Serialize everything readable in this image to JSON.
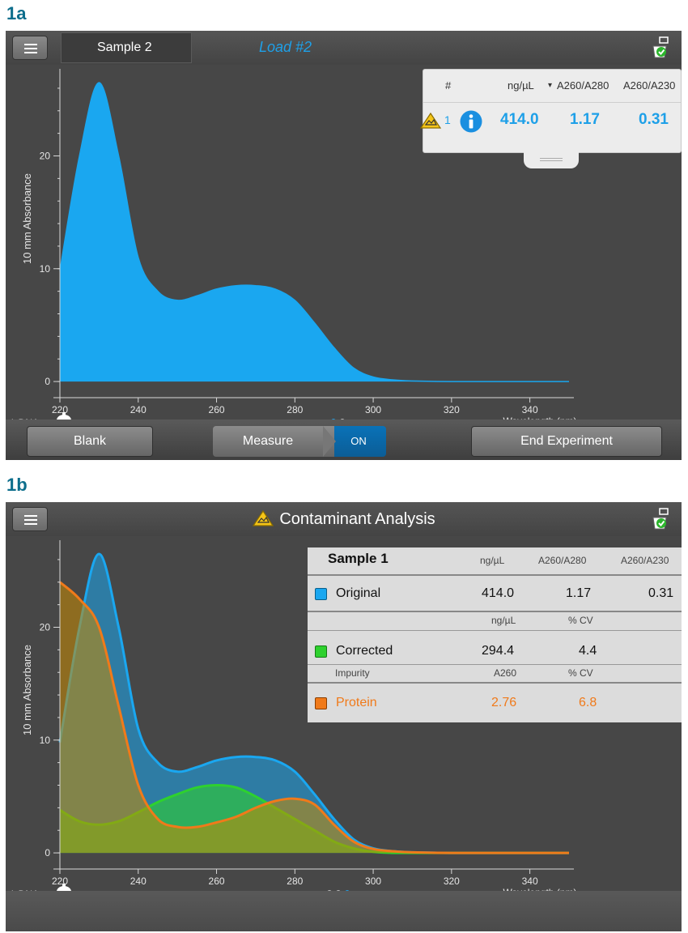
{
  "figure_a": {
    "label": "1a",
    "sample_field": "Sample 2",
    "load_label": "Load #2",
    "results": {
      "headers": {
        "num": "#",
        "ngul": "ng/µL",
        "sort_indicator": "▾",
        "a260_280": "A260/A280",
        "a260_230": "A260/A230"
      },
      "row": {
        "num": "1",
        "ngul": "414.0",
        "a260_280": "1.17",
        "a260_230": "0.31"
      }
    },
    "chart": {
      "ylabel": "10 mm Absorbance",
      "xlabel": "Wavelength (nm)",
      "y_ticks": [
        "0",
        "10",
        "20"
      ],
      "x_ticks": [
        "220",
        "240",
        "260",
        "280",
        "300",
        "320",
        "340"
      ],
      "sample_type": "dsDNA"
    },
    "buttons": {
      "blank": "Blank",
      "measure": "Measure",
      "on": "ON",
      "end": "End Experiment"
    }
  },
  "figure_b": {
    "label": "1b",
    "title": "Contaminant Analysis",
    "chart": {
      "ylabel": "10 mm Absorbance",
      "xlabel": "Wavelength (nm)",
      "y_ticks": [
        "0",
        "10",
        "20"
      ],
      "x_ticks": [
        "220",
        "240",
        "260",
        "280",
        "300",
        "320",
        "340"
      ],
      "sample_type": "dsDNA"
    },
    "table": {
      "sample": "Sample 1",
      "h1": {
        "ngul": "ng/µL",
        "a260_280": "A260/A280",
        "a260_230": "A260/A230"
      },
      "original": {
        "label": "Original",
        "ngul": "414.0",
        "a260_280": "1.17",
        "a260_230": "0.31"
      },
      "h2": {
        "ngul": "ng/µL",
        "cv": "% CV"
      },
      "corrected": {
        "label": "Corrected",
        "ngul": "294.4",
        "cv": "4.4"
      },
      "h3": {
        "impurity": "Impurity",
        "a260": "A260",
        "cv": "% CV"
      },
      "protein": {
        "label": "Protein",
        "a260": "2.76",
        "cv": "6.8"
      }
    }
  },
  "colors": {
    "original": "#1aa7f0",
    "corrected": "#2ed12e",
    "protein": "#f07a1a",
    "accent": "#1ea0e8",
    "warning": "#f5c518"
  },
  "chart_data": [
    {
      "type": "area",
      "title": "",
      "xlabel": "Wavelength (nm)",
      "ylabel": "10 mm Absorbance",
      "xlim": [
        220,
        350
      ],
      "ylim": [
        -1,
        27
      ],
      "series": [
        {
          "name": "Sample 2",
          "x": [
            220,
            225,
            230,
            235,
            240,
            245,
            250,
            255,
            260,
            265,
            270,
            275,
            280,
            285,
            290,
            295,
            300,
            305,
            310,
            320,
            330,
            340,
            350
          ],
          "values": [
            9.8,
            20,
            26.5,
            20,
            11,
            8,
            7.2,
            7.6,
            8.2,
            8.5,
            8.5,
            8.2,
            7.2,
            5.2,
            3,
            1.2,
            0.4,
            0.15,
            0.05,
            0,
            0,
            0,
            0
          ]
        }
      ]
    },
    {
      "type": "area",
      "title": "Contaminant Analysis",
      "xlabel": "Wavelength (nm)",
      "ylabel": "10 mm Absorbance",
      "xlim": [
        220,
        350
      ],
      "ylim": [
        -1,
        27
      ],
      "series": [
        {
          "name": "Original",
          "x": [
            220,
            225,
            230,
            235,
            240,
            245,
            250,
            255,
            260,
            265,
            270,
            275,
            280,
            285,
            290,
            295,
            300,
            305,
            310,
            320,
            330,
            340,
            350
          ],
          "values": [
            9.8,
            20,
            26.5,
            20,
            11,
            8,
            7.2,
            7.6,
            8.2,
            8.5,
            8.5,
            8.2,
            7.2,
            5.2,
            3,
            1.2,
            0.4,
            0.15,
            0.05,
            0,
            0,
            0,
            0
          ]
        },
        {
          "name": "Corrected",
          "x": [
            220,
            225,
            230,
            235,
            240,
            245,
            250,
            255,
            260,
            265,
            270,
            275,
            280,
            285,
            290,
            295,
            300,
            305,
            310,
            320,
            330,
            340,
            350
          ],
          "values": [
            3.8,
            2.8,
            2.5,
            2.8,
            3.6,
            4.5,
            5.2,
            5.8,
            6,
            5.8,
            5,
            4,
            3,
            2,
            1,
            0.4,
            0.1,
            0,
            0,
            0,
            0,
            0,
            0
          ]
        },
        {
          "name": "Protein",
          "x": [
            220,
            225,
            230,
            235,
            240,
            245,
            250,
            255,
            260,
            265,
            270,
            275,
            280,
            285,
            290,
            295,
            300,
            305,
            310,
            320,
            330,
            340,
            350
          ],
          "values": [
            24,
            22.5,
            20,
            13,
            6,
            3,
            2.3,
            2.3,
            2.7,
            3.2,
            4,
            4.6,
            4.8,
            4.3,
            2.5,
            1,
            0.35,
            0.15,
            0.05,
            0,
            0,
            0,
            0
          ]
        }
      ]
    }
  ]
}
